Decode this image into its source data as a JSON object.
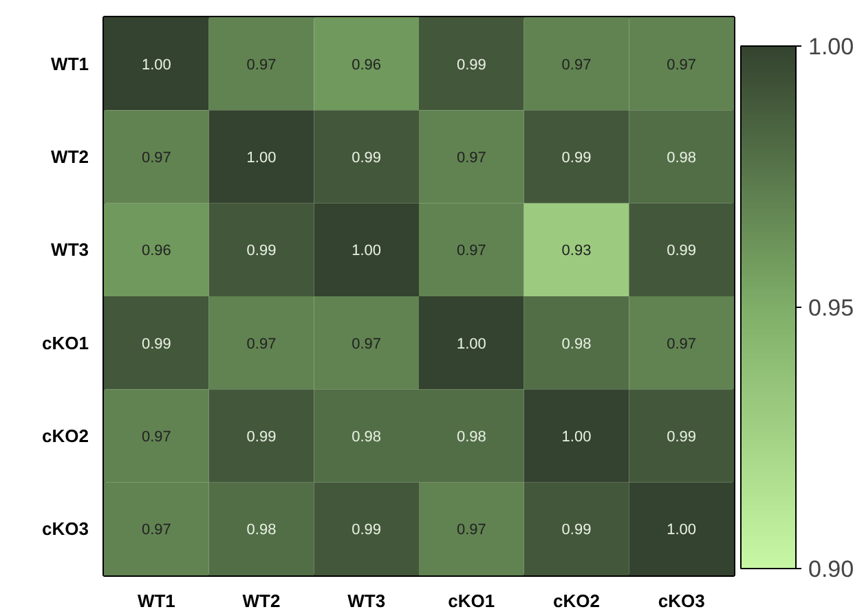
{
  "chart_data": {
    "type": "heatmap",
    "categories": [
      "WT1",
      "WT2",
      "WT3",
      "cKO1",
      "cKO2",
      "cKO3"
    ],
    "y_categories": [
      "WT1",
      "WT2",
      "WT3",
      "cKO1",
      "cKO2",
      "cKO3"
    ],
    "cells": [
      [
        1.0,
        0.97,
        0.96,
        0.99,
        0.97,
        0.97
      ],
      [
        0.97,
        1.0,
        0.99,
        0.97,
        0.99,
        0.98
      ],
      [
        0.96,
        0.99,
        1.0,
        0.97,
        0.93,
        0.99
      ],
      [
        0.99,
        0.97,
        0.97,
        1.0,
        0.98,
        0.97
      ],
      [
        0.97,
        0.99,
        0.98,
        0.98,
        1.0,
        0.99
      ],
      [
        0.97,
        0.98,
        0.99,
        0.97,
        0.99,
        1.0
      ]
    ],
    "cell_labels": [
      [
        "1.00",
        "0.97",
        "0.96",
        "0.99",
        "0.97",
        "0.97"
      ],
      [
        "0.97",
        "1.00",
        "0.99",
        "0.97",
        "0.99",
        "0.98"
      ],
      [
        "0.96",
        "0.99",
        "1.00",
        "0.97",
        "0.93",
        "0.99"
      ],
      [
        "0.99",
        "0.97",
        "0.97",
        "1.00",
        "0.98",
        "0.97"
      ],
      [
        "0.97",
        "0.99",
        "0.98",
        "0.98",
        "1.00",
        "0.99"
      ],
      [
        "0.97",
        "0.98",
        "0.99",
        "0.97",
        "0.99",
        "1.00"
      ]
    ],
    "colors": [
      "#c8f7a4",
      "#7fae68",
      "#34432f"
    ],
    "clim": [
      0.9,
      1.0
    ],
    "cticks": [
      {
        "value": 0.9,
        "label": "0.90"
      },
      {
        "value": 0.95,
        "label": "0.95"
      },
      {
        "value": 1.0,
        "label": "1.00"
      }
    ]
  }
}
